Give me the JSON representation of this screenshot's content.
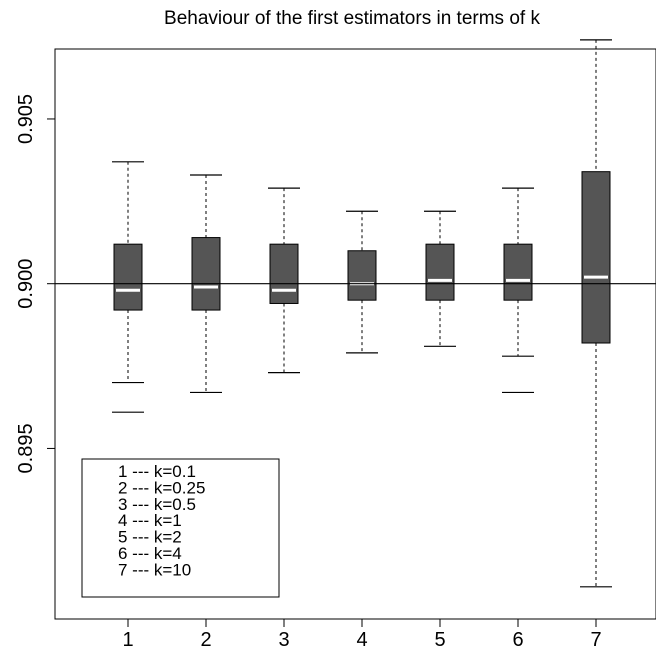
{
  "chart_data": {
    "type": "boxplot",
    "title": "Behaviour of the first estimators in terms of k",
    "xlabel": "",
    "ylabel": "",
    "categories": [
      "1",
      "2",
      "3",
      "4",
      "5",
      "6",
      "7"
    ],
    "y_ticks": [
      "0.895",
      "0.900",
      "0.905"
    ],
    "ylim": [
      0.8904,
      0.9077
    ],
    "reference_line": 0.9,
    "boxes": [
      {
        "label": "1",
        "whisker_low": 0.897,
        "q1": 0.8992,
        "median": 0.8998,
        "q3": 0.9012,
        "whisker_high": 0.9037,
        "outliers": [
          0.8961
        ]
      },
      {
        "label": "2",
        "whisker_low": 0.8967,
        "q1": 0.8992,
        "median": 0.8999,
        "q3": 0.9014,
        "whisker_high": 0.9033,
        "outliers": []
      },
      {
        "label": "3",
        "whisker_low": 0.8973,
        "q1": 0.8994,
        "median": 0.8998,
        "q3": 0.9012,
        "whisker_high": 0.9029,
        "outliers": []
      },
      {
        "label": "4",
        "whisker_low": 0.8979,
        "q1": 0.8995,
        "median": 0.9,
        "q3": 0.901,
        "whisker_high": 0.9022,
        "outliers": []
      },
      {
        "label": "5",
        "whisker_low": 0.8981,
        "q1": 0.8995,
        "median": 0.9001,
        "q3": 0.9012,
        "whisker_high": 0.9022,
        "outliers": []
      },
      {
        "label": "6",
        "whisker_low": 0.8978,
        "q1": 0.8995,
        "median": 0.9001,
        "q3": 0.9012,
        "whisker_high": 0.9029,
        "outliers": [
          0.8967
        ]
      },
      {
        "label": "7",
        "whisker_low": 0.8908,
        "q1": 0.8982,
        "median": 0.9002,
        "q3": 0.9034,
        "whisker_high": 0.9074,
        "outliers": []
      }
    ],
    "legend": [
      "1 --- k=0.1",
      "2 --- k=0.25",
      "3 --- k=0.5",
      "4 --- k=1",
      "5 --- k=2",
      "6 --- k=4",
      "7 --- k=10"
    ],
    "legend_position": "bottom-left",
    "grid": false,
    "box_color": "#555555",
    "median_color": "#ffffff"
  }
}
